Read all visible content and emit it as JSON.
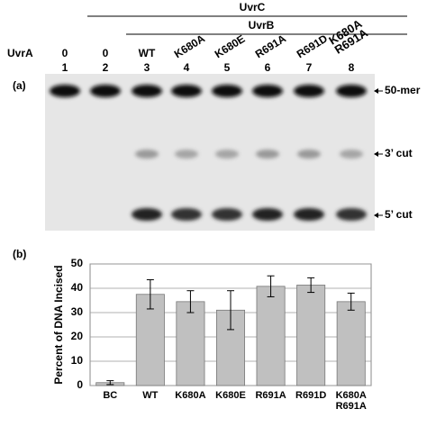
{
  "figure": {
    "panel_a_label": "(a)",
    "panel_b_label": "(b)"
  },
  "gel": {
    "uvrc": "UvrC",
    "uvrb": "UvrB",
    "uvra": "UvrA",
    "lane_headers": [
      "0",
      "0",
      "WT",
      "K680A",
      "K680E",
      "R691A",
      "R691D",
      "K680A\nR691A"
    ],
    "lane_numbers": [
      "1",
      "2",
      "3",
      "4",
      "5",
      "6",
      "7",
      "8"
    ],
    "band_labels": [
      "50-mer",
      "3’ cut",
      "5’ cut"
    ]
  },
  "chart_data": {
    "type": "bar",
    "y_label": "Percent of DNA Incised",
    "categories": [
      "BC",
      "WT",
      "K680A",
      "K680E",
      "R691A",
      "R691D",
      "K680A\nR691A"
    ],
    "values": [
      1.2,
      37.5,
      34.5,
      31,
      40.8,
      41.3,
      34.5
    ],
    "errors": [
      0.8,
      6,
      4.5,
      8,
      4.3,
      3,
      3.5
    ],
    "color": "#c0c0c0",
    "ylim": [
      0,
      50
    ],
    "yticks": [
      0,
      10,
      20,
      30,
      40,
      50
    ],
    "grid": true
  }
}
